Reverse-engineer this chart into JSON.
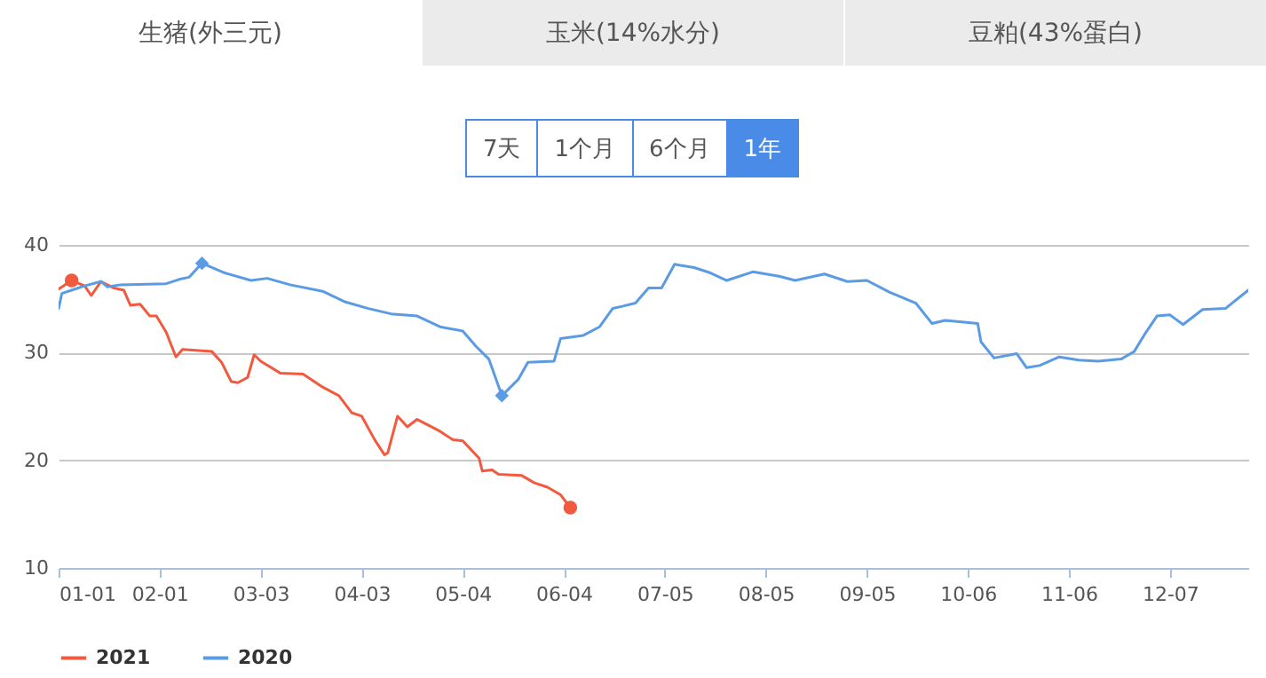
{
  "chart_data": {
    "type": "line",
    "title": "生猪(外三元)",
    "annotations": [
      "玉米(14%水分)",
      "豆粕(43%蛋白)",
      "7天",
      "1个月",
      "6个月",
      "1年"
    ],
    "ylim": [
      10,
      40
    ],
    "yticks": [
      10,
      20,
      30,
      40
    ],
    "xlim": [
      "--01-01",
      "--12-31"
    ],
    "xticks": [
      {
        "value": "--01-01",
        "label": "01-01"
      },
      {
        "value": "--02-01",
        "label": "02-01"
      },
      {
        "value": "--03-03",
        "label": "03-03"
      },
      {
        "value": "--04-03",
        "label": "04-03"
      },
      {
        "value": "--05-04",
        "label": "05-04"
      },
      {
        "value": "--06-04",
        "label": "06-04"
      },
      {
        "value": "--07-05",
        "label": "07-05"
      },
      {
        "value": "--08-05",
        "label": "08-05"
      },
      {
        "value": "--09-05",
        "label": "09-05"
      },
      {
        "value": "--10-06",
        "label": "10-06"
      },
      {
        "value": "--11-06",
        "label": "11-06"
      },
      {
        "value": "--12-07",
        "label": "12-07"
      }
    ],
    "grid": "y",
    "legend": "bottom",
    "line_style": "solid",
    "marker": "none",
    "series": [
      {
        "name": "2021",
        "color": "#f15a3f",
        "x": [
          "--01-01",
          "--01-05",
          "--01-09",
          "--01-11",
          "--01-14",
          "--01-18",
          "--01-21",
          "--01-23",
          "--01-26",
          "--01-29",
          "--01-31",
          "--02-03",
          "--02-06",
          "--02-08",
          "--02-17",
          "--02-20",
          "--02-23",
          "--02-25",
          "--02-28",
          "--03-01",
          "--03-03",
          "--03-09",
          "--03-16",
          "--03-22",
          "--03-27",
          "--03-31",
          "--04-03",
          "--04-07",
          "--04-10",
          "--04-11",
          "--04-14",
          "--04-17",
          "--04-20",
          "--04-27",
          "--05-01",
          "--05-04",
          "--05-09",
          "--05-10",
          "--05-13",
          "--05-15",
          "--05-22",
          "--05-26",
          "--05-30",
          "--06-03",
          "--06-06"
        ],
        "values": [
          35.9,
          36.7,
          36.2,
          35.3,
          36.6,
          36.0,
          35.8,
          34.4,
          34.5,
          33.4,
          33.4,
          31.9,
          29.6,
          30.3,
          30.1,
          29.1,
          27.3,
          27.2,
          27.7,
          29.8,
          29.2,
          28.1,
          28.0,
          26.8,
          26.0,
          24.4,
          24.1,
          21.9,
          20.5,
          20.7,
          24.1,
          23.1,
          23.8,
          22.7,
          21.9,
          21.8,
          20.2,
          19.0,
          19.1,
          18.7,
          18.6,
          17.9,
          17.5,
          16.8,
          15.6
        ]
      },
      {
        "name": "2020",
        "color": "#5a9be3",
        "x": [
          "--01-01",
          "--01-02",
          "--01-05",
          "--01-09",
          "--01-14",
          "--01-16",
          "--01-20",
          "--02-03",
          "--02-07",
          "--02-10",
          "--02-14",
          "--02-21",
          "--02-29",
          "--03-05",
          "--03-12",
          "--03-22",
          "--03-29",
          "--04-05",
          "--04-12",
          "--04-20",
          "--04-27",
          "--05-04",
          "--05-08",
          "--05-12",
          "--05-16",
          "--05-21",
          "--05-24",
          "--06-01",
          "--06-03",
          "--06-10",
          "--06-15",
          "--06-19",
          "--06-22",
          "--06-26",
          "--06-30",
          "--07-04",
          "--07-08",
          "--07-14",
          "--07-19",
          "--07-24",
          "--08-01",
          "--08-09",
          "--08-14",
          "--08-23",
          "--08-30",
          "--09-05",
          "--09-12",
          "--09-20",
          "--09-25",
          "--09-29",
          "--10-09",
          "--10-10",
          "--10-14",
          "--10-21",
          "--10-24",
          "--10-28",
          "--11-03",
          "--11-09",
          "--11-15",
          "--11-22",
          "--11-26",
          "--11-29",
          "--12-03",
          "--12-07",
          "--12-11",
          "--12-17",
          "--12-24",
          "--12-31"
        ],
        "values": [
          34.1,
          35.5,
          35.8,
          36.2,
          36.6,
          36.1,
          36.3,
          36.4,
          36.8,
          37.0,
          38.3,
          37.4,
          36.7,
          36.9,
          36.3,
          35.7,
          34.7,
          34.1,
          33.6,
          33.4,
          32.4,
          32.0,
          30.6,
          29.4,
          26.0,
          27.5,
          29.1,
          29.2,
          31.3,
          31.6,
          32.4,
          34.1,
          34.3,
          34.6,
          36.0,
          36.0,
          38.2,
          37.9,
          37.4,
          36.7,
          37.5,
          37.1,
          36.7,
          37.3,
          36.6,
          36.7,
          35.6,
          34.6,
          32.7,
          33.0,
          32.7,
          31.0,
          29.5,
          29.9,
          28.6,
          28.8,
          29.6,
          29.3,
          29.2,
          29.4,
          30.1,
          31.6,
          33.4,
          33.5,
          32.6,
          34.0,
          34.1,
          35.8
        ]
      },
      {
        "type": "scatter",
        "marker": "circle",
        "color": "#f15a3f",
        "x": [
          "--01-05",
          "--06-06"
        ],
        "values": [
          36.7,
          15.6
        ]
      },
      {
        "type": "scatter",
        "marker": "diamond",
        "color": "#5a9be3",
        "x": [
          "--02-14",
          "--05-16"
        ],
        "values": [
          38.3,
          26.0
        ]
      }
    ]
  }
}
